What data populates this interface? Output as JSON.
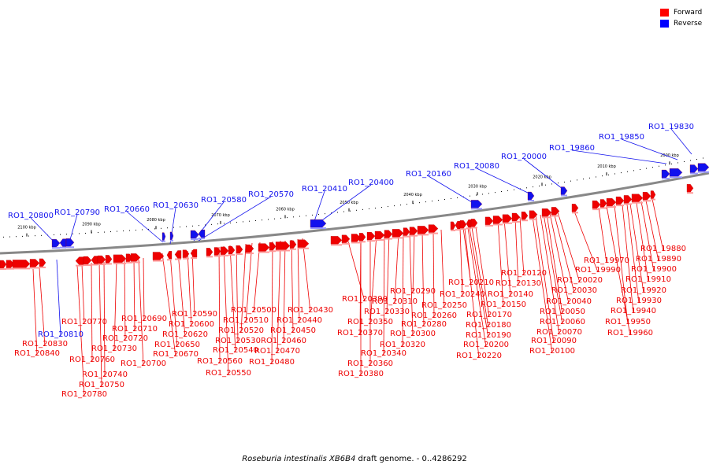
{
  "caption": {
    "organism": "Roseburia intestinalis XB6B4",
    "suffix": "draft genome. - 0..4286292"
  },
  "legend": {
    "forward": {
      "label": "Forward",
      "color": "#ff0000"
    },
    "reverse": {
      "label": "Reverse",
      "color": "#0000ff"
    }
  },
  "colors": {
    "forward": "#ee0000",
    "reverse": "#1111ee",
    "backbone": "#888888"
  },
  "ticks": [
    "2000 kbp",
    "2010 kbp",
    "2020 kbp",
    "2030 kbp",
    "2040 kbp",
    "2050 kbp",
    "2060 kbp",
    "2070 kbp",
    "2080 kbp",
    "2090 kbp",
    "2100 kbp"
  ],
  "reverse_genes": [
    "RO1_19830",
    "RO1_19850",
    "RO1_19860",
    "RO1_20000",
    "RO1_20080",
    "RO1_20160",
    "RO1_20400",
    "RO1_20410",
    "RO1_20570",
    "RO1_20580",
    "RO1_20630",
    "RO1_20660",
    "RO1_20790",
    "RO1_20800",
    "RO1_20810"
  ],
  "forward_genes": [
    "RO1_19880",
    "RO1_19890",
    "RO1_19900",
    "RO1_19910",
    "RO1_19920",
    "RO1_19930",
    "RO1_19940",
    "RO1_19950",
    "RO1_19960",
    "RO1_19970",
    "RO1_19990",
    "RO1_20020",
    "RO1_20030",
    "RO1_20040",
    "RO1_20050",
    "RO1_20060",
    "RO1_20070",
    "RO1_20090",
    "RO1_20100",
    "RO1_20120",
    "RO1_20130",
    "RO1_20140",
    "RO1_20150",
    "RO1_20170",
    "RO1_20180",
    "RO1_20190",
    "RO1_20200",
    "RO1_20210",
    "RO1_20220",
    "RO1_20240",
    "RO1_20250",
    "RO1_20260",
    "RO1_20280",
    "RO1_20290",
    "RO1_20300",
    "RO1_20310",
    "RO1_20320",
    "RO1_20330",
    "RO1_20340",
    "RO1_20350",
    "RO1_20360",
    "RO1_20370",
    "RO1_20380",
    "RO1_20390",
    "RO1_20430",
    "RO1_20440",
    "RO1_20450",
    "RO1_20460",
    "RO1_20470",
    "RO1_20480",
    "RO1_20500",
    "RO1_20510",
    "RO1_20520",
    "RO1_20530",
    "RO1_20540",
    "RO1_20550",
    "RO1_20560",
    "RO1_20590",
    "RO1_20600",
    "RO1_20620",
    "RO1_20650",
    "RO1_20670",
    "RO1_20690",
    "RO1_20700",
    "RO1_20710",
    "RO1_20720",
    "RO1_20730",
    "RO1_20740",
    "RO1_20750",
    "RO1_20760",
    "RO1_20770",
    "RO1_20780",
    "RO1_20830",
    "RO1_20840"
  ]
}
